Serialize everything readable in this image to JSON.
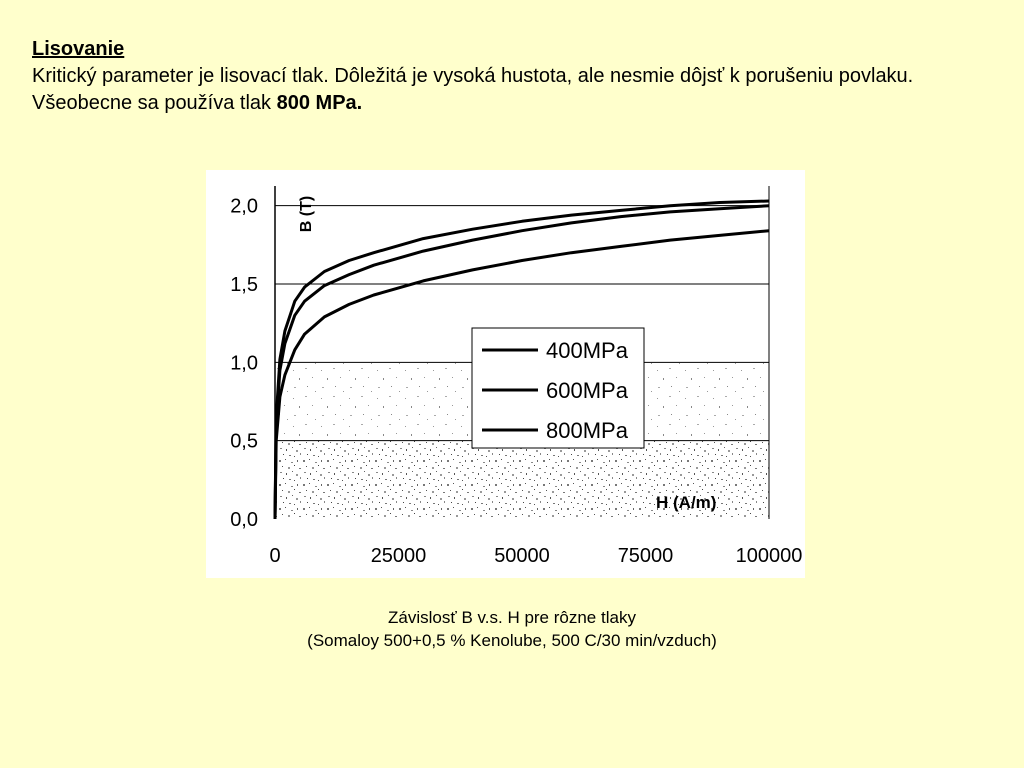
{
  "slide": {
    "title": "Lisovanie",
    "paragraph": "Kritický parameter je lisovací tlak. Dôležitá je vysoká hustota, ale nesmie dôjsť k porušeniu povlaku.",
    "line3_prefix": "Všeobecne sa používa tlak ",
    "line3_bold": "800 MPa."
  },
  "caption": {
    "line1": "Závislosť B v.s. H pre rôzne tlaky",
    "line2": "(Somaloy 500+0,5 % Kenolube, 500 C/30 min/vzduch)"
  },
  "chart_data": {
    "type": "line",
    "xlabel": "H (A/m)",
    "ylabel": "B (T)",
    "xlim": [
      0,
      100000
    ],
    "ylim": [
      0,
      2.1
    ],
    "x_ticks": [
      "0",
      "25000",
      "50000",
      "75000",
      "100000"
    ],
    "y_ticks": [
      "0,0",
      "0,5",
      "1,0",
      "1,5",
      "2,0"
    ],
    "grid": "horizontal",
    "legend_position": "center-right",
    "series": [
      {
        "name": "400MPa",
        "x": [
          0,
          250,
          1000,
          2000,
          4000,
          6000,
          10000,
          15000,
          20000,
          30000,
          40000,
          50000,
          60000,
          70000,
          80000,
          90000,
          100000
        ],
        "y": [
          0.0,
          0.5,
          0.78,
          0.92,
          1.08,
          1.18,
          1.29,
          1.37,
          1.43,
          1.52,
          1.59,
          1.65,
          1.7,
          1.74,
          1.78,
          1.81,
          1.84
        ]
      },
      {
        "name": "600MPa",
        "x": [
          0,
          250,
          1000,
          2000,
          4000,
          6000,
          10000,
          15000,
          20000,
          30000,
          40000,
          50000,
          60000,
          70000,
          80000,
          90000,
          100000
        ],
        "y": [
          0.0,
          0.6,
          0.95,
          1.12,
          1.3,
          1.39,
          1.49,
          1.56,
          1.62,
          1.71,
          1.78,
          1.84,
          1.89,
          1.93,
          1.96,
          1.98,
          2.0
        ]
      },
      {
        "name": "800MPa",
        "x": [
          0,
          250,
          1000,
          2000,
          4000,
          6000,
          10000,
          15000,
          20000,
          30000,
          40000,
          50000,
          60000,
          70000,
          80000,
          90000,
          100000
        ],
        "y": [
          0.0,
          0.65,
          1.02,
          1.2,
          1.39,
          1.48,
          1.58,
          1.65,
          1.7,
          1.79,
          1.85,
          1.9,
          1.94,
          1.97,
          2.0,
          2.02,
          2.03
        ]
      }
    ]
  }
}
